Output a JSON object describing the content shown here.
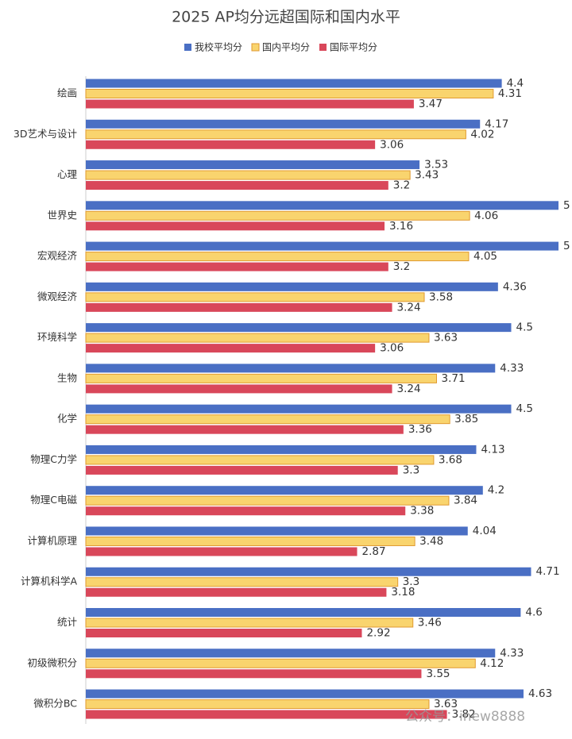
{
  "chart_data": {
    "type": "bar",
    "orientation": "horizontal",
    "title": "2025 AP均分远超国际和国内水平",
    "categories": [
      "绘画",
      "3D艺术与设计",
      "心理",
      "世界史",
      "宏观经济",
      "微观经济",
      "环境科学",
      "生物",
      "化学",
      "物理C力学",
      "物理C电磁",
      "计算机原理",
      "计算机科学A",
      "统计",
      "初级微积分",
      "微积分BC"
    ],
    "series": [
      {
        "name": "我校平均分",
        "color": "#4a6fc4",
        "values": [
          4.4,
          4.17,
          3.53,
          5,
          5,
          4.36,
          4.5,
          4.33,
          4.5,
          4.13,
          4.2,
          4.04,
          4.71,
          4.6,
          4.33,
          4.63
        ]
      },
      {
        "name": "国内平均分",
        "color": "#f9d46e",
        "values": [
          4.31,
          4.02,
          3.43,
          4.06,
          4.05,
          3.58,
          3.63,
          3.71,
          3.85,
          3.68,
          3.84,
          3.48,
          3.3,
          3.46,
          4.12,
          3.63
        ]
      },
      {
        "name": "国际平均分",
        "color": "#d9475a",
        "values": [
          3.47,
          3.06,
          3.2,
          3.16,
          3.2,
          3.24,
          3.06,
          3.24,
          3.36,
          3.3,
          3.38,
          2.87,
          3.18,
          2.92,
          3.55,
          3.82
        ]
      }
    ],
    "xlim": [
      0,
      5
    ],
    "legend": "top",
    "watermark": "公众号：inew8888"
  }
}
